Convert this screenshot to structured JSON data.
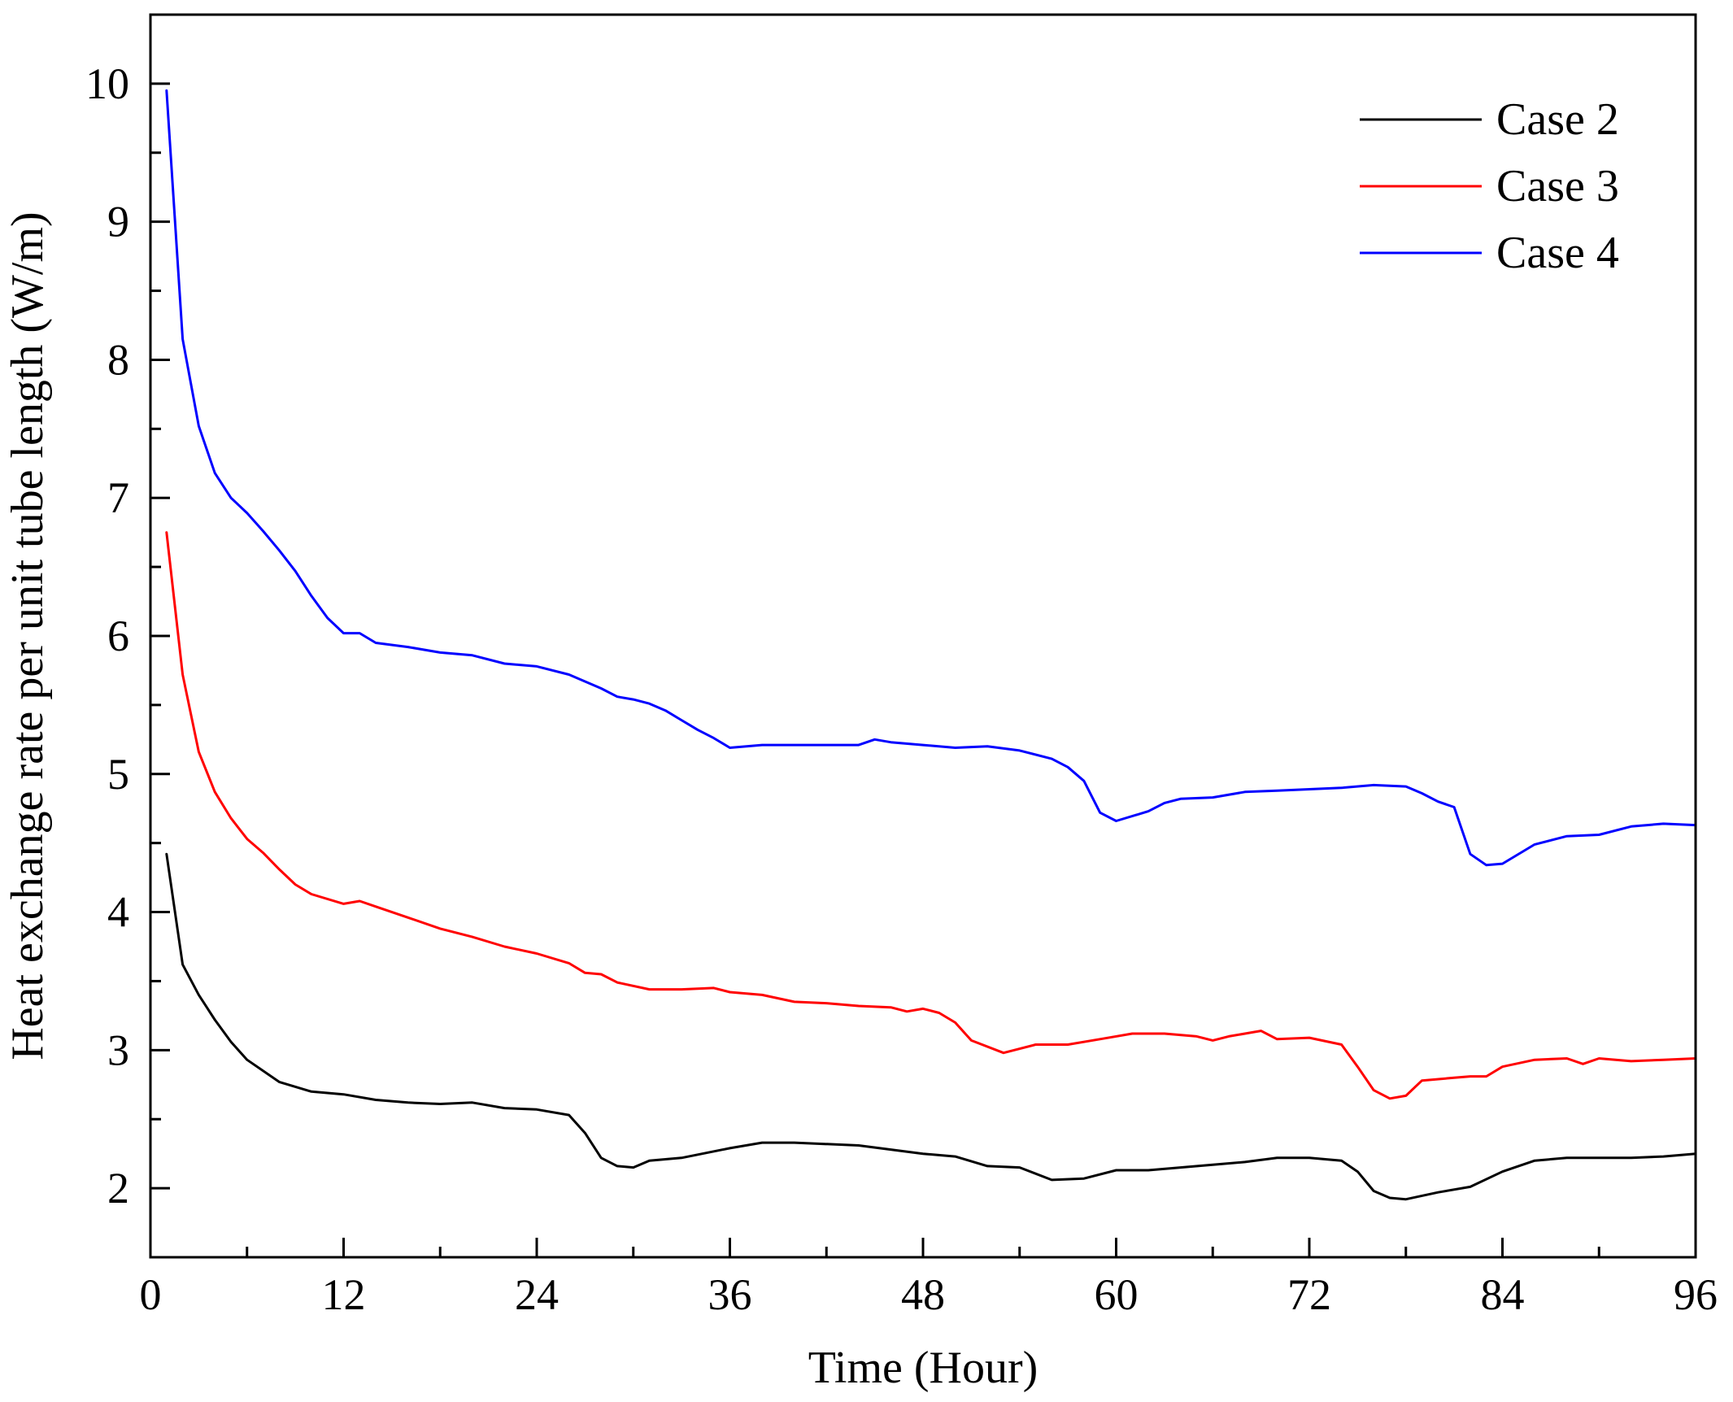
{
  "chart_data": {
    "type": "line",
    "title": "",
    "xlabel": "Time (Hour)",
    "ylabel": "Heat exchange rate per unit tube length (W/m)",
    "xlim": [
      0,
      96
    ],
    "ylim": [
      1.5,
      10.5
    ],
    "xticks": [
      0,
      12,
      24,
      36,
      48,
      60,
      72,
      84,
      96
    ],
    "xtick_labels": [
      "0",
      "12",
      "24",
      "36",
      "48",
      "60",
      "72",
      "84",
      "96"
    ],
    "yticks": [
      2,
      3,
      4,
      5,
      6,
      7,
      8,
      9,
      10
    ],
    "ytick_labels": [
      "2",
      "3",
      "4",
      "5",
      "6",
      "7",
      "8",
      "9",
      "10"
    ],
    "grid": false,
    "legend_position": "top-right",
    "series": [
      {
        "name": "Case 2",
        "color": "#000000",
        "x": [
          1,
          2,
          3,
          4,
          5,
          6,
          8,
          10,
          12,
          14,
          16,
          18,
          20,
          22,
          24,
          26,
          27,
          28,
          29,
          30,
          31,
          33,
          36,
          38,
          40,
          44,
          48,
          50,
          52,
          54,
          56,
          58,
          60,
          62,
          64,
          66,
          68,
          70,
          72,
          74,
          75,
          76,
          77,
          78,
          80,
          82,
          84,
          86,
          88,
          90,
          92,
          94,
          96
        ],
        "y": [
          4.42,
          3.62,
          3.4,
          3.22,
          3.06,
          2.93,
          2.77,
          2.7,
          2.68,
          2.64,
          2.62,
          2.61,
          2.62,
          2.58,
          2.57,
          2.53,
          2.4,
          2.22,
          2.16,
          2.15,
          2.2,
          2.22,
          2.29,
          2.33,
          2.33,
          2.31,
          2.25,
          2.23,
          2.16,
          2.15,
          2.06,
          2.07,
          2.13,
          2.13,
          2.15,
          2.17,
          2.19,
          2.22,
          2.22,
          2.2,
          2.12,
          1.98,
          1.93,
          1.92,
          1.97,
          2.01,
          2.12,
          2.2,
          2.22,
          2.22,
          2.22,
          2.23,
          2.25
        ]
      },
      {
        "name": "Case 3",
        "color": "#ff0000",
        "x": [
          1,
          2,
          3,
          4,
          5,
          6,
          7,
          8,
          9,
          10,
          12,
          13,
          14,
          16,
          18,
          20,
          22,
          24,
          26,
          27,
          28,
          29,
          31,
          33,
          35,
          36,
          38,
          40,
          42,
          44,
          46,
          47,
          48,
          49,
          50,
          51,
          53,
          55,
          57,
          59,
          61,
          63,
          65,
          66,
          67,
          69,
          70,
          72,
          74,
          75,
          76,
          77,
          78,
          79,
          81,
          82,
          83,
          84,
          86,
          88,
          89,
          90,
          92,
          94,
          96
        ],
        "y": [
          6.75,
          5.72,
          5.16,
          4.87,
          4.68,
          4.53,
          4.43,
          4.31,
          4.2,
          4.13,
          4.06,
          4.08,
          4.04,
          3.96,
          3.88,
          3.82,
          3.75,
          3.7,
          3.63,
          3.56,
          3.55,
          3.49,
          3.44,
          3.44,
          3.45,
          3.42,
          3.4,
          3.35,
          3.34,
          3.32,
          3.31,
          3.28,
          3.3,
          3.27,
          3.2,
          3.07,
          2.98,
          3.04,
          3.04,
          3.08,
          3.12,
          3.12,
          3.1,
          3.07,
          3.1,
          3.14,
          3.08,
          3.09,
          3.04,
          2.88,
          2.71,
          2.65,
          2.67,
          2.78,
          2.8,
          2.81,
          2.81,
          2.88,
          2.93,
          2.94,
          2.9,
          2.94,
          2.92,
          2.93,
          2.94
        ]
      },
      {
        "name": "Case 4",
        "color": "#0000ff",
        "x": [
          1,
          2,
          3,
          4,
          5,
          6,
          7,
          8,
          9,
          10,
          11,
          12,
          13,
          14,
          16,
          18,
          20,
          22,
          24,
          26,
          28,
          29,
          30,
          31,
          32,
          33,
          34,
          35,
          36,
          38,
          40,
          42,
          44,
          45,
          46,
          48,
          50,
          52,
          54,
          56,
          57,
          58,
          59,
          60,
          62,
          63,
          64,
          66,
          68,
          70,
          72,
          74,
          76,
          78,
          79,
          80,
          81,
          82,
          83,
          84,
          86,
          88,
          90,
          92,
          94,
          96
        ],
        "y": [
          9.95,
          8.15,
          7.52,
          7.18,
          7.0,
          6.89,
          6.76,
          6.62,
          6.47,
          6.29,
          6.13,
          6.02,
          6.02,
          5.95,
          5.92,
          5.88,
          5.86,
          5.8,
          5.78,
          5.72,
          5.62,
          5.56,
          5.54,
          5.51,
          5.46,
          5.39,
          5.32,
          5.26,
          5.19,
          5.21,
          5.21,
          5.21,
          5.21,
          5.25,
          5.23,
          5.21,
          5.19,
          5.2,
          5.17,
          5.11,
          5.05,
          4.95,
          4.72,
          4.66,
          4.73,
          4.79,
          4.82,
          4.83,
          4.87,
          4.88,
          4.89,
          4.9,
          4.92,
          4.91,
          4.86,
          4.8,
          4.76,
          4.42,
          4.34,
          4.35,
          4.49,
          4.55,
          4.56,
          4.62,
          4.64,
          4.63
        ]
      }
    ]
  }
}
